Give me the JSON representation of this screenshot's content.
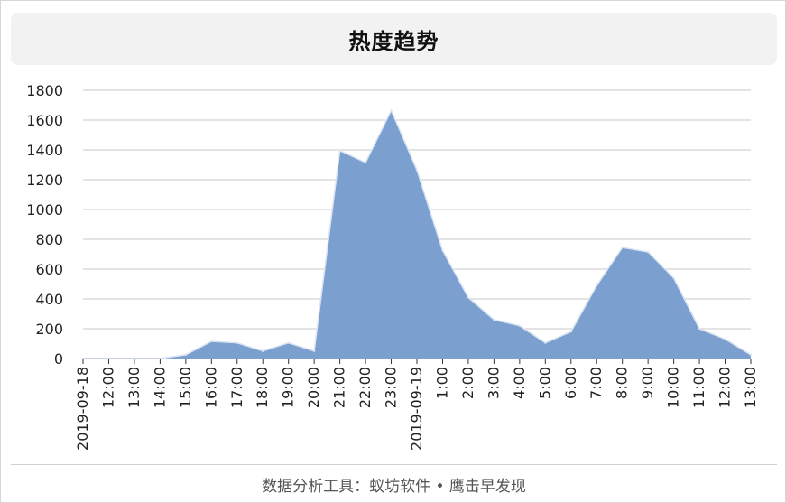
{
  "chart_data": {
    "type": "area",
    "title": "热度趋势",
    "xlabel": "",
    "ylabel": "",
    "x": [
      "2019-09-18",
      "12:00",
      "13:00",
      "14:00",
      "15:00",
      "16:00",
      "17:00",
      "18:00",
      "19:00",
      "20:00",
      "21:00",
      "22:00",
      "23:00",
      "2019-09-19",
      "1:00",
      "2:00",
      "3:00",
      "4:00",
      "5:00",
      "6:00",
      "7:00",
      "8:00",
      "9:00",
      "10:00",
      "11:00",
      "12:00",
      "13:00"
    ],
    "values": [
      0,
      0,
      0,
      0,
      25,
      115,
      105,
      50,
      105,
      50,
      1395,
      1315,
      1665,
      1265,
      725,
      410,
      260,
      220,
      105,
      180,
      490,
      745,
      715,
      540,
      200,
      130,
      25
    ],
    "ylim": [
      0,
      1800
    ],
    "yticks": [
      0,
      200,
      400,
      600,
      800,
      1000,
      1200,
      1400,
      1600,
      1800
    ],
    "grid": true,
    "fill_color": "#7b9fcf",
    "line_color": "#d9e4f2"
  },
  "footer": "数据分析工具：蚁坊软件 • 鹰击早发现"
}
